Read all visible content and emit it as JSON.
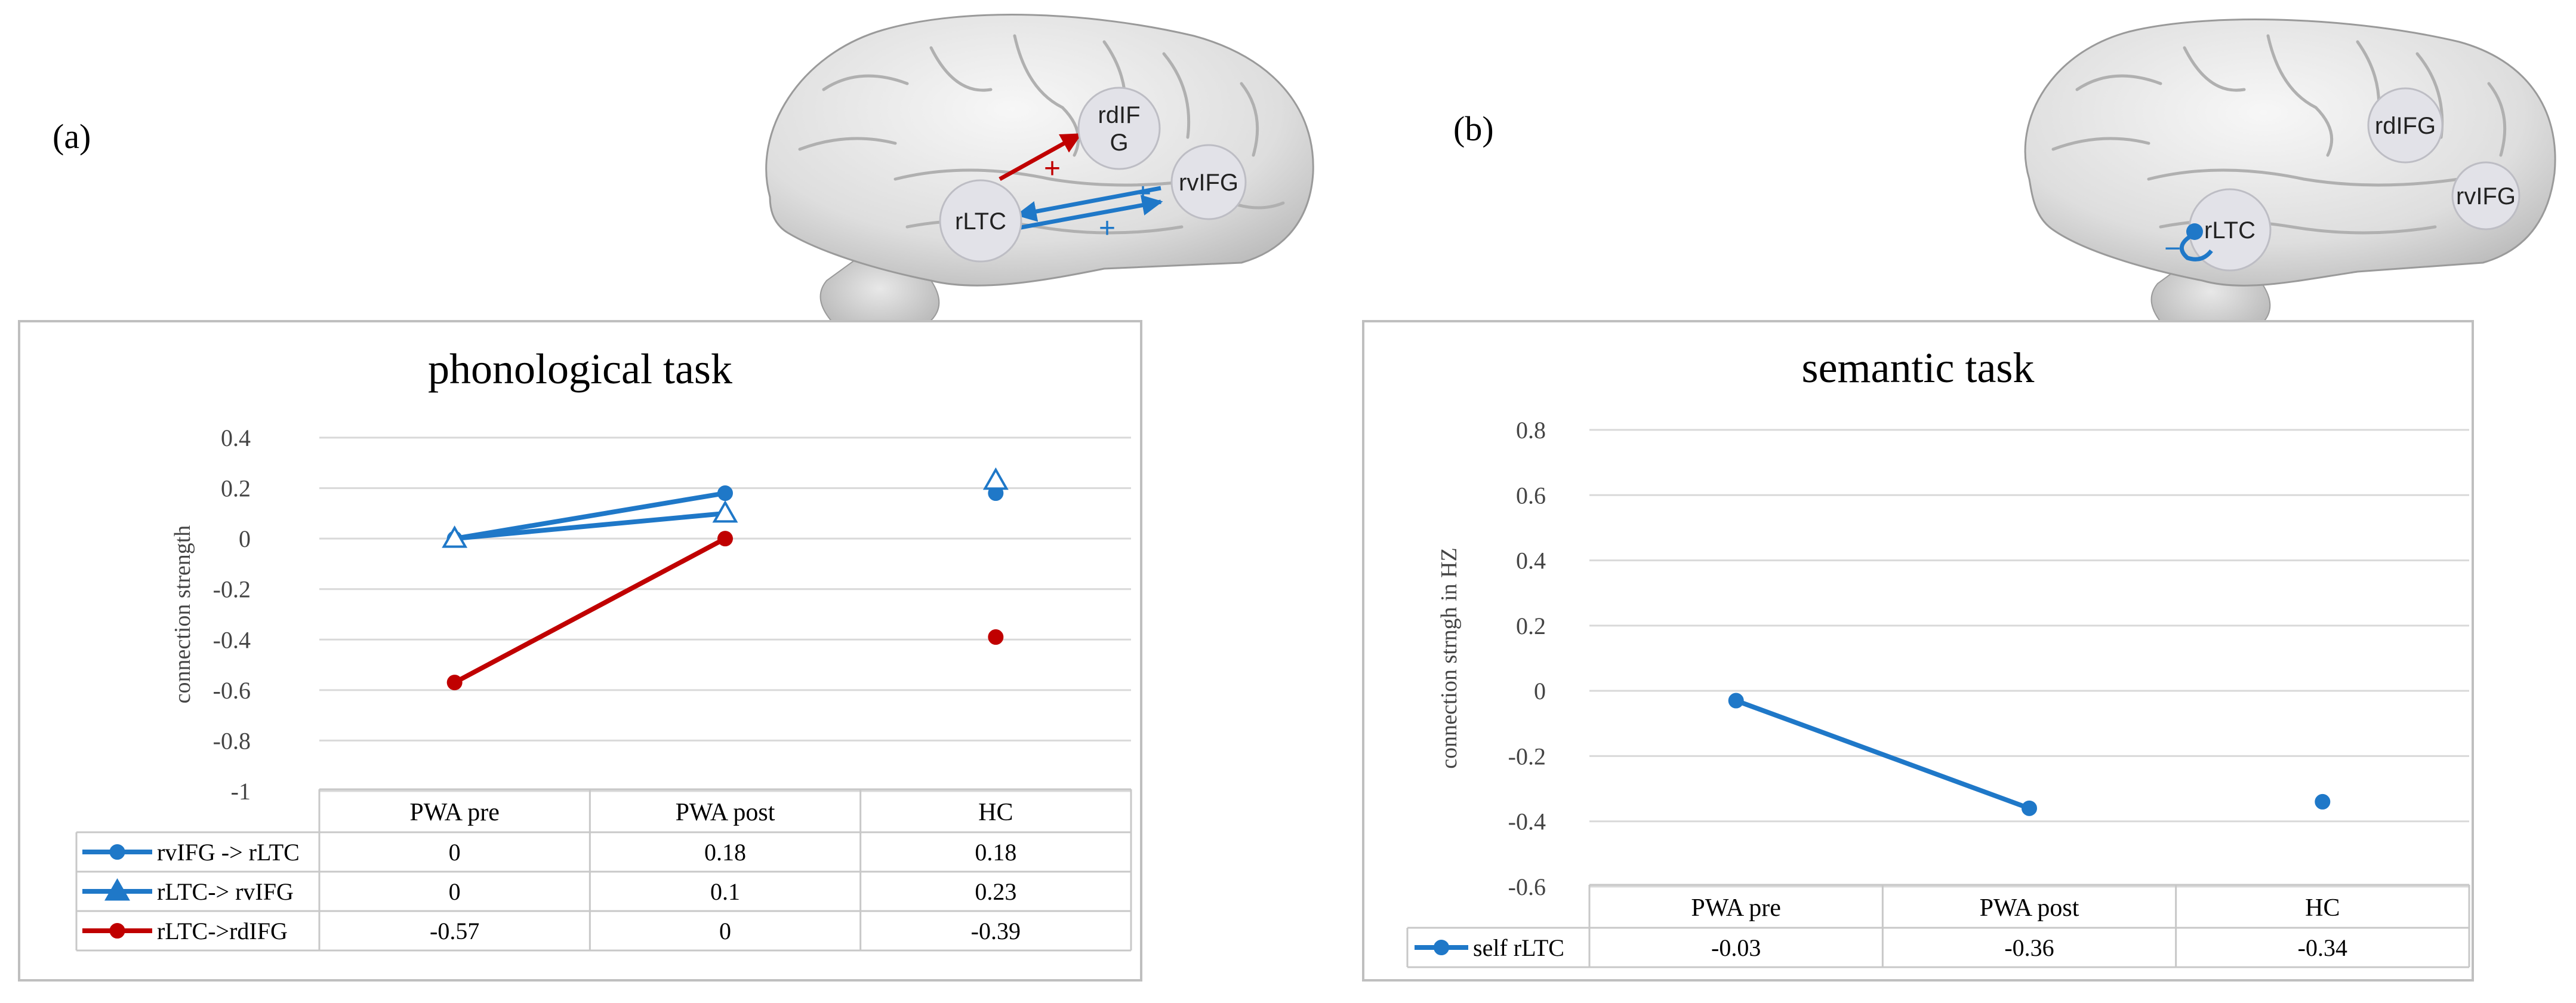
{
  "panels": [
    {
      "label": "(a)"
    },
    {
      "label": "(b)"
    }
  ],
  "brains": [
    {
      "regions": [
        "rdIF G",
        "rvIFG",
        "rLTC"
      ],
      "signs": [
        "+",
        "+",
        "+"
      ]
    },
    {
      "regions": [
        "rdIFG",
        "rvIFG",
        "rLTC"
      ],
      "signs": [
        "−"
      ]
    }
  ],
  "colors": {
    "blue": "#1f78c8",
    "red": "#c00000",
    "grid": "#d9d9d9",
    "border": "#bfbfbf"
  },
  "chart_data": [
    {
      "type": "line",
      "title": "phonological task",
      "ylabel": "connection strength",
      "ylim": [
        -1,
        0.4
      ],
      "yticks": [
        "0.4",
        "0.2",
        "0",
        "-0.2",
        "-0.4",
        "-0.6",
        "-0.8",
        "-1"
      ],
      "categories": [
        "PWA pre",
        "PWA post",
        "HC"
      ],
      "series": [
        {
          "name": "rvIFG -> rLTC",
          "values": [
            0,
            0.18,
            0.18
          ],
          "labels": [
            "0",
            "0.18",
            "0.18"
          ],
          "color": "#1f78c8",
          "marker": "circle"
        },
        {
          "name": "rLTC-> rvIFG",
          "values": [
            0,
            0.1,
            0.23
          ],
          "labels": [
            "0",
            "0.1",
            "0.23"
          ],
          "color": "#1f78c8",
          "marker": "triangle"
        },
        {
          "name": "rLTC->rdIFG",
          "values": [
            -0.57,
            0,
            -0.39
          ],
          "labels": [
            "-0.57",
            "0",
            "-0.39"
          ],
          "color": "#c00000",
          "marker": "circle"
        }
      ]
    },
    {
      "type": "line",
      "title": "semantic task",
      "ylabel": "connection strngh in HZ",
      "ylim": [
        -0.6,
        0.8
      ],
      "yticks": [
        "0.8",
        "0.6",
        "0.4",
        "0.2",
        "0",
        "-0.2",
        "-0.4",
        "-0.6"
      ],
      "categories": [
        "PWA pre",
        "PWA post",
        "HC"
      ],
      "series": [
        {
          "name": "self rLTC",
          "values": [
            -0.03,
            -0.36,
            -0.34
          ],
          "labels": [
            "-0.03",
            "-0.36",
            "-0.34"
          ],
          "color": "#1f78c8",
          "marker": "circle"
        }
      ]
    }
  ]
}
